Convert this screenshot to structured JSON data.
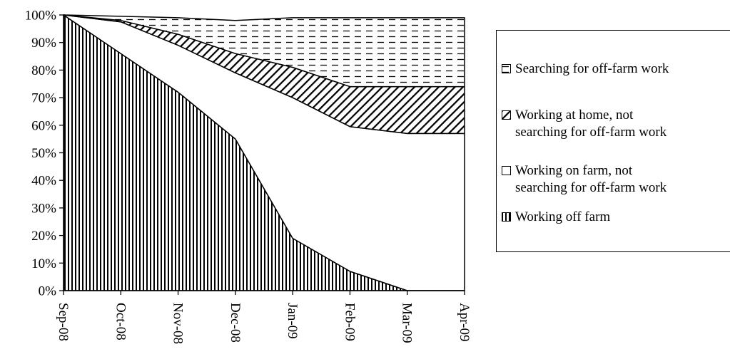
{
  "chart_data": {
    "type": "area",
    "stacked": true,
    "x": [
      "Sep-08",
      "Oct-08",
      "Nov-08",
      "Dec-08",
      "Jan-09",
      "Feb-09",
      "Mar-09",
      "Apr-09"
    ],
    "y_ticks": [
      "0%",
      "10%",
      "20%",
      "30%",
      "40%",
      "50%",
      "60%",
      "70%",
      "80%",
      "90%",
      "100%"
    ],
    "ylim": [
      0,
      100
    ],
    "grid": false,
    "legend_position": "right",
    "series": [
      {
        "name": "Working off farm",
        "pattern": "vertical-lines",
        "values": [
          100,
          86,
          72,
          55,
          19,
          7,
          0,
          0
        ]
      },
      {
        "name": "Working on farm, not searching for off-farm work",
        "pattern": "solid-white",
        "values": [
          0,
          11.5,
          17,
          24,
          51,
          52.5,
          57,
          57
        ]
      },
      {
        "name": "Working at home, not searching for off-farm work",
        "pattern": "diagonal-lines",
        "values": [
          0,
          0.5,
          4,
          7,
          11,
          14.5,
          17,
          17
        ]
      },
      {
        "name": "Searching for off-farm work",
        "pattern": "horizontal-dashes",
        "values": [
          0,
          1.5,
          6,
          12,
          18,
          25,
          25,
          25
        ]
      }
    ],
    "legend": {
      "items": [
        {
          "key": "search",
          "line1": "Searching for off-farm work",
          "line2": ""
        },
        {
          "key": "home",
          "line1": "Working at home, not",
          "line2": "searching for off-farm work"
        },
        {
          "key": "onfarm",
          "line1": "Working on farm, not",
          "line2": "searching for off-farm work"
        },
        {
          "key": "offfarm",
          "line1": "Working off farm",
          "line2": ""
        }
      ]
    }
  }
}
